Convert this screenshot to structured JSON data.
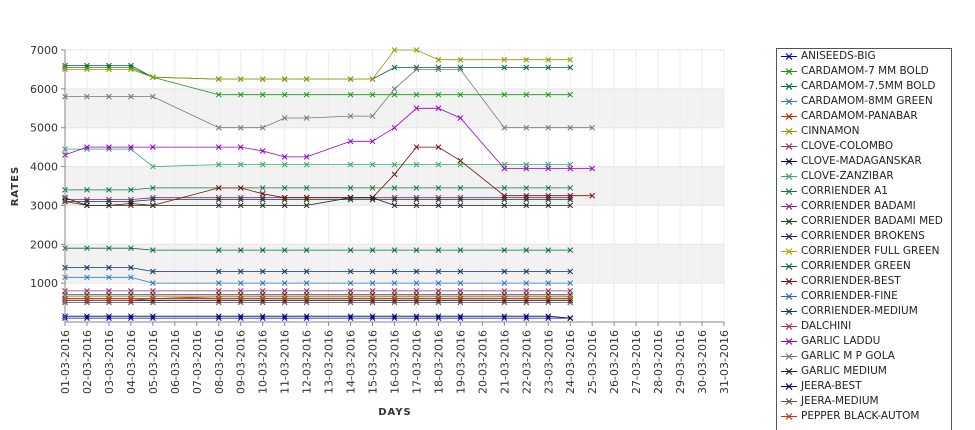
{
  "chart_data": {
    "type": "line",
    "title": "",
    "xlabel": "DAYS",
    "ylabel": "RATES",
    "ylim": [
      0,
      7000
    ],
    "yticks": [
      1000,
      2000,
      3000,
      4000,
      5000,
      6000,
      7000
    ],
    "grid": "horizontal alternating bands",
    "legend_placement": "right",
    "categories": [
      "01-03-2016",
      "02-03-2016",
      "03-03-2016",
      "04-03-2016",
      "05-03-2016",
      "06-03-2016",
      "07-03-2016",
      "08-03-2016",
      "09-03-2016",
      "10-03-2016",
      "11-03-2016",
      "12-03-2016",
      "13-03-2016",
      "14-03-2016",
      "15-03-2016",
      "16-03-2016",
      "17-03-2016",
      "18-03-2016",
      "19-03-2016",
      "20-03-2016",
      "21-03-2016",
      "22-03-2016",
      "23-03-2016",
      "24-03-2016",
      "25-03-2016",
      "26-03-2016",
      "27-03-2016",
      "28-03-2016",
      "29-03-2016",
      "30-03-2016",
      "31-03-2016"
    ],
    "series": [
      {
        "name": "ANISEEDS-BIG",
        "color": "#0000cc",
        "values": [
          100,
          100,
          100,
          100,
          100,
          null,
          null,
          100,
          100,
          100,
          100,
          100,
          null,
          100,
          100,
          100,
          100,
          100,
          100,
          null,
          100,
          100,
          100,
          100,
          null,
          null,
          null,
          null,
          null,
          null,
          null
        ]
      },
      {
        "name": "CARDAMOM-7 MM BOLD",
        "color": "#119911",
        "values": [
          6550,
          6550,
          6550,
          6550,
          6300,
          null,
          null,
          5850,
          5850,
          5850,
          5850,
          5850,
          null,
          5850,
          5850,
          5850,
          5850,
          5850,
          5850,
          null,
          5850,
          5850,
          5850,
          5850,
          null,
          null,
          null,
          null,
          null,
          null,
          null
        ]
      },
      {
        "name": "CARDAMOM-7.5MM BOLD",
        "color": "#006644",
        "values": [
          6600,
          6600,
          6600,
          6600,
          6300,
          null,
          null,
          6250,
          6250,
          6250,
          6250,
          6250,
          null,
          6250,
          6250,
          6550,
          6550,
          6550,
          6550,
          null,
          6550,
          6550,
          6550,
          6550,
          null,
          null,
          null,
          null,
          null,
          null,
          null
        ]
      },
      {
        "name": "CARDAMOM-8MM GREEN",
        "color": "#3377bb",
        "values": [
          1150,
          1150,
          1150,
          1150,
          1000,
          null,
          null,
          1000,
          1000,
          1000,
          1000,
          1000,
          null,
          1000,
          1000,
          1000,
          1000,
          1000,
          1000,
          null,
          1000,
          1000,
          1000,
          1000,
          null,
          null,
          null,
          null,
          null,
          null,
          null
        ]
      },
      {
        "name": "CARDAMOM-PANABAR",
        "color": "#cc2200",
        "values": [
          600,
          600,
          600,
          600,
          600,
          null,
          null,
          650,
          650,
          650,
          650,
          650,
          null,
          650,
          650,
          650,
          650,
          650,
          650,
          null,
          650,
          650,
          650,
          650,
          null,
          null,
          null,
          null,
          null,
          null,
          null
        ]
      },
      {
        "name": "CINNAMON",
        "color": "#999900",
        "values": [
          6500,
          6500,
          6500,
          6500,
          6300,
          null,
          null,
          6250,
          6250,
          6250,
          6250,
          6250,
          null,
          6250,
          6250,
          7000,
          7000,
          6750,
          6750,
          null,
          6750,
          6750,
          6750,
          6750,
          null,
          null,
          null,
          null,
          null,
          null,
          null
        ]
      },
      {
        "name": "CLOVE-COLOMBO",
        "color": "#993366",
        "values": [
          800,
          800,
          800,
          800,
          800,
          null,
          null,
          800,
          800,
          800,
          800,
          800,
          null,
          800,
          800,
          800,
          800,
          800,
          800,
          null,
          800,
          800,
          800,
          800,
          null,
          null,
          null,
          null,
          null,
          null,
          null
        ]
      },
      {
        "name": "CLOVE-MADAGANSKAR",
        "color": "#000044",
        "values": [
          550,
          550,
          550,
          550,
          550,
          null,
          null,
          550,
          550,
          550,
          550,
          550,
          null,
          550,
          550,
          550,
          550,
          550,
          550,
          null,
          550,
          550,
          550,
          550,
          null,
          null,
          null,
          null,
          null,
          null,
          null
        ]
      },
      {
        "name": "CLOVE-ZANZIBAR",
        "color": "#33aa66",
        "values": [
          4450,
          4450,
          4450,
          4450,
          4000,
          null,
          null,
          4050,
          4050,
          4050,
          4050,
          4050,
          null,
          4050,
          4050,
          4050,
          4050,
          4050,
          4050,
          null,
          4050,
          4050,
          4050,
          4050,
          null,
          null,
          null,
          null,
          null,
          null,
          null
        ]
      },
      {
        "name": "CORRIENDER A1",
        "color": "#117744",
        "values": [
          3400,
          3400,
          3400,
          3400,
          3450,
          null,
          null,
          3450,
          3450,
          3450,
          3450,
          3450,
          null,
          3450,
          3450,
          3450,
          3450,
          3450,
          3450,
          null,
          3450,
          3450,
          3450,
          3450,
          null,
          null,
          null,
          null,
          null,
          null,
          null
        ]
      },
      {
        "name": "CORRIENDER BADAMI",
        "color": "#882288",
        "values": [
          3150,
          3150,
          3150,
          3150,
          3200,
          null,
          null,
          3200,
          3200,
          3200,
          3200,
          3200,
          null,
          3200,
          3200,
          3200,
          3200,
          3200,
          3200,
          null,
          3200,
          3200,
          3200,
          3200,
          null,
          null,
          null,
          null,
          null,
          null,
          null
        ]
      },
      {
        "name": "CORRIENDER BADAMI MED",
        "color": "#114422",
        "values": [
          3100,
          3100,
          3100,
          3100,
          3150,
          null,
          null,
          3150,
          3150,
          3150,
          3150,
          3150,
          null,
          3150,
          3150,
          3150,
          3150,
          3150,
          3150,
          null,
          3150,
          3150,
          3150,
          3150,
          null,
          null,
          null,
          null,
          null,
          null,
          null
        ]
      },
      {
        "name": "CORRIENDER BROKENS",
        "color": "#222266",
        "values": [
          700,
          700,
          700,
          700,
          700,
          null,
          null,
          700,
          700,
          700,
          700,
          700,
          null,
          700,
          700,
          700,
          700,
          700,
          700,
          null,
          700,
          700,
          700,
          700,
          null,
          null,
          null,
          null,
          null,
          null,
          null
        ]
      },
      {
        "name": "CORRIENDER FULL GREEN",
        "color": "#aaaa00",
        "values": [
          650,
          650,
          650,
          650,
          650,
          null,
          null,
          650,
          650,
          650,
          650,
          650,
          null,
          650,
          650,
          650,
          650,
          650,
          650,
          null,
          650,
          650,
          650,
          650,
          null,
          null,
          null,
          null,
          null,
          null,
          null
        ]
      },
      {
        "name": "CORRIENDER GREEN",
        "color": "#116655",
        "values": [
          1900,
          1900,
          1900,
          1900,
          1850,
          null,
          null,
          1850,
          1850,
          1850,
          1850,
          1850,
          null,
          1850,
          1850,
          1850,
          1850,
          1850,
          1850,
          null,
          1850,
          1850,
          1850,
          1850,
          null,
          null,
          null,
          null,
          null,
          null,
          null
        ]
      },
      {
        "name": "CORRIENDER-BEST",
        "color": "#771111",
        "values": [
          3100,
          3000,
          3000,
          3000,
          3000,
          null,
          null,
          3450,
          3450,
          3300,
          3200,
          3200,
          null,
          3200,
          3200,
          3800,
          4500,
          4500,
          4150,
          null,
          3250,
          3250,
          3250,
          3250,
          3250,
          null,
          null,
          null,
          null,
          null,
          null
        ]
      },
      {
        "name": "CORRIENDER-FINE",
        "color": "#2266bb",
        "values": [
          600,
          600,
          600,
          600,
          600,
          null,
          null,
          600,
          600,
          600,
          600,
          600,
          null,
          600,
          600,
          600,
          600,
          600,
          600,
          null,
          600,
          600,
          600,
          600,
          null,
          null,
          null,
          null,
          null,
          null,
          null
        ]
      },
      {
        "name": "CORRIENDER-MEDIUM",
        "color": "#113366",
        "values": [
          1400,
          1400,
          1400,
          1400,
          1300,
          null,
          null,
          1300,
          1300,
          1300,
          1300,
          1300,
          null,
          1300,
          1300,
          1300,
          1300,
          1300,
          1300,
          null,
          1300,
          1300,
          1300,
          1300,
          null,
          null,
          null,
          null,
          null,
          null,
          null
        ]
      },
      {
        "name": "DALCHINI",
        "color": "#aa3355",
        "values": [
          550,
          550,
          550,
          550,
          600,
          null,
          null,
          600,
          600,
          600,
          600,
          600,
          null,
          600,
          600,
          600,
          600,
          600,
          600,
          null,
          600,
          600,
          600,
          600,
          null,
          null,
          null,
          null,
          null,
          null,
          null
        ]
      },
      {
        "name": "GARLIC LADDU",
        "color": "#9900cc",
        "values": [
          4300,
          4500,
          4500,
          4500,
          4500,
          null,
          null,
          4500,
          4500,
          4400,
          4250,
          4250,
          null,
          4650,
          4650,
          5000,
          5500,
          5500,
          5250,
          null,
          3950,
          3950,
          3950,
          3950,
          3950,
          null,
          null,
          null,
          null,
          null,
          null
        ]
      },
      {
        "name": "GARLIC M P GOLA",
        "color": "#777777",
        "values": [
          5800,
          5800,
          5800,
          5800,
          5800,
          null,
          null,
          5000,
          5000,
          5000,
          5250,
          5250,
          null,
          5300,
          5300,
          6000,
          6500,
          6500,
          6500,
          null,
          5000,
          5000,
          5000,
          5000,
          5000,
          null,
          null,
          null,
          null,
          null,
          null
        ]
      },
      {
        "name": "GARLIC MEDIUM",
        "color": "#222222",
        "values": [
          3200,
          3000,
          3000,
          3050,
          3000,
          null,
          null,
          3000,
          3000,
          3000,
          3000,
          3000,
          null,
          3200,
          3200,
          3000,
          3000,
          3000,
          3000,
          null,
          3000,
          3000,
          3000,
          3000,
          null,
          null,
          null,
          null,
          null,
          null,
          null
        ]
      },
      {
        "name": "JEERA-BEST",
        "color": "#000066",
        "values": [
          150,
          150,
          150,
          150,
          150,
          null,
          null,
          150,
          150,
          150,
          150,
          150,
          null,
          150,
          150,
          150,
          150,
          150,
          150,
          null,
          150,
          150,
          150,
          100,
          null,
          null,
          null,
          null,
          null,
          null,
          null
        ]
      },
      {
        "name": "JEERA-MEDIUM",
        "color": "#555555",
        "values": [
          500,
          500,
          500,
          500,
          500,
          null,
          null,
          500,
          500,
          500,
          500,
          500,
          null,
          500,
          500,
          500,
          500,
          500,
          500,
          null,
          500,
          500,
          500,
          500,
          null,
          null,
          null,
          null,
          null,
          null,
          null
        ]
      },
      {
        "name": "PEPPER BLACK-AUTOM",
        "color": "#cc3311",
        "values": [
          600,
          600,
          600,
          600,
          600,
          null,
          null,
          600,
          600,
          600,
          600,
          600,
          null,
          600,
          600,
          600,
          600,
          600,
          600,
          null,
          600,
          600,
          600,
          600,
          null,
          null,
          null,
          null,
          null,
          null,
          null
        ]
      }
    ]
  }
}
